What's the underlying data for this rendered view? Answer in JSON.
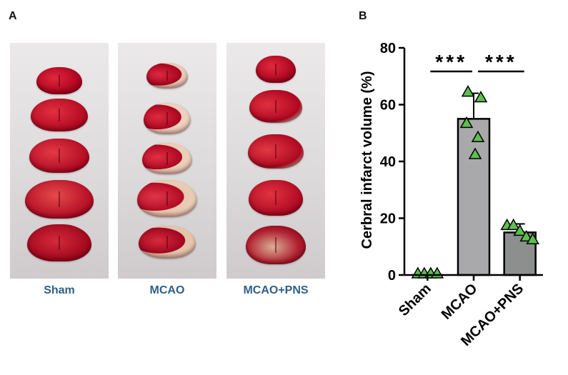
{
  "panels": {
    "a": "A",
    "b": "B"
  },
  "photos": {
    "groups": [
      "Sham",
      "MCAO",
      "MCAO+PNS"
    ],
    "label_color": "#2f5f8a"
  },
  "chart_data": {
    "type": "bar",
    "categories": [
      "Sham",
      "MCAO",
      "MCAO+PNS"
    ],
    "values": [
      0,
      55,
      15
    ],
    "error": [
      0,
      9,
      3
    ],
    "points": [
      [
        0,
        0,
        0,
        0
      ],
      [
        64,
        62,
        53,
        48,
        42
      ],
      [
        17,
        17,
        15,
        13,
        12
      ]
    ],
    "ylabel": "Cerbral infarct volume (%)",
    "xlabel": "",
    "title": "",
    "ylim": [
      0,
      80
    ],
    "yticks": [
      0,
      20,
      40,
      60,
      80
    ],
    "significance": [
      {
        "from": "Sham",
        "to": "MCAO",
        "label": "***"
      },
      {
        "from": "MCAO",
        "to": "MCAO+PNS",
        "label": "***"
      }
    ],
    "bar_colors": [
      "#ffffff",
      "#a9a9ab",
      "#8c8f8e"
    ],
    "point_color": "#5cc04e",
    "grid": false
  }
}
